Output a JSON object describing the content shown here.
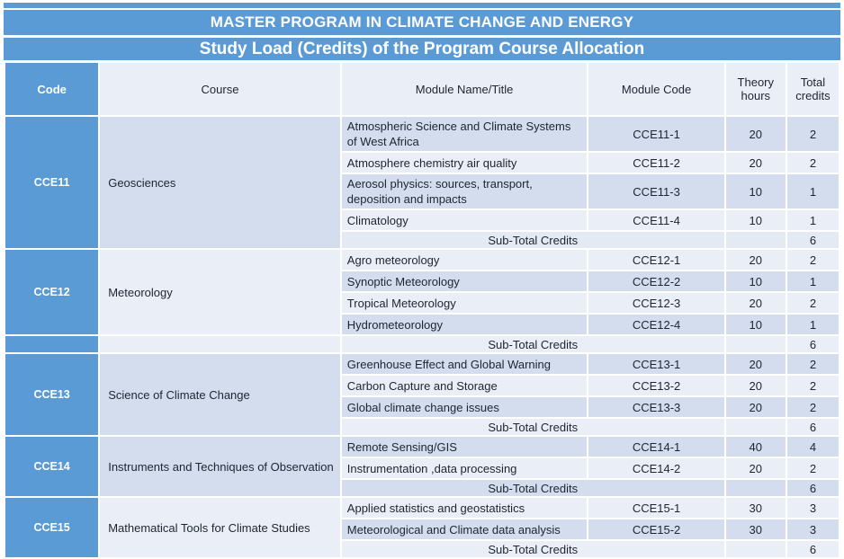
{
  "title": "MASTER PROGRAM IN CLIMATE CHANGE AND ENERGY",
  "subtitle": "Study Load (Credits) of the Program Course Allocation",
  "colors": {
    "accent_blue": "#5b9bd5",
    "row_dark": "#d3ddee",
    "row_light": "#eaeef7",
    "row_medium": "#e4eaf4",
    "grid_white": "#ffffff",
    "header_text": "#1e2530",
    "inverse_text": "#ffffff"
  },
  "table": {
    "headers": [
      "Code",
      "Course",
      "Module Name/Title",
      "Module Code",
      "Theory hours",
      "Total credits"
    ],
    "subtotal_label": "Sub-Total Credits",
    "sections": [
      {
        "code": "CCE11",
        "course": "Geosciences",
        "course_shade": "dark",
        "modules": [
          {
            "name": "Atmospheric Science and Climate Systems of West Africa",
            "code": "CCE11-1",
            "hours": "20",
            "credits": "2",
            "shade": "dark"
          },
          {
            "name": "Atmosphere chemistry air quality",
            "code": "CCE11-2",
            "hours": "20",
            "credits": "2",
            "shade": "light"
          },
          {
            "name": "Aerosol physics: sources, transport, deposition and impacts",
            "code": "CCE11-3",
            "hours": "10",
            "credits": "1",
            "shade": "dark"
          },
          {
            "name": "Climatology",
            "code": "CCE11-4",
            "hours": "10",
            "credits": "1",
            "shade": "light"
          }
        ],
        "subtotal": {
          "credits": "6",
          "shade": "medium",
          "standalone": false
        }
      },
      {
        "code": "CCE12",
        "course": "Meteorology",
        "course_shade": "light",
        "modules": [
          {
            "name": "Agro meteorology",
            "code": "CCE12-1",
            "hours": "20",
            "credits": "2",
            "shade": "light"
          },
          {
            "name": "Synoptic Meteorology",
            "code": "CCE12-2",
            "hours": "10",
            "credits": "1",
            "shade": "dark"
          },
          {
            "name": "Tropical Meteorology",
            "code": "CCE12-3",
            "hours": "20",
            "credits": "2",
            "shade": "light"
          },
          {
            "name": "Hydrometeorology",
            "code": "CCE12-4",
            "hours": "10",
            "credits": "1",
            "shade": "dark"
          }
        ],
        "subtotal": {
          "credits": "6",
          "shade": "light",
          "standalone": true
        }
      },
      {
        "code": "CCE13",
        "course": "Science of Climate Change",
        "course_shade": "dark",
        "modules": [
          {
            "name": "Greenhouse Effect and Global Warning",
            "code": "CCE13-1",
            "hours": "20",
            "credits": "2",
            "shade": "dark"
          },
          {
            "name": "Carbon Capture and Storage",
            "code": "CCE13-2",
            "hours": "20",
            "credits": "2",
            "shade": "light"
          },
          {
            "name": "Global climate change issues",
            "code": "CCE13-3",
            "hours": "20",
            "credits": "2",
            "shade": "dark"
          }
        ],
        "subtotal": {
          "credits": "6",
          "shade": "light",
          "standalone": false
        }
      },
      {
        "code": "CCE14",
        "course": "Instruments and Techniques of Observation",
        "course_shade": "dark",
        "modules": [
          {
            "name": "Remote Sensing/GIS",
            "code": "CCE14-1",
            "hours": "40",
            "credits": "4",
            "shade": "dark"
          },
          {
            "name": "Instrumentation ,data processing",
            "code": "CCE14-2",
            "hours": "20",
            "credits": "2",
            "shade": "light"
          }
        ],
        "subtotal": {
          "credits": "6",
          "shade": "dark",
          "standalone": false
        }
      },
      {
        "code": "CCE15",
        "course": "Mathematical Tools for Climate Studies",
        "course_shade": "light",
        "modules": [
          {
            "name": "Applied statistics and geostatistics",
            "code": "CCE15-1",
            "hours": "30",
            "credits": "3",
            "shade": "light"
          },
          {
            "name": "Meteorological and Climate data analysis",
            "code": "CCE15-2",
            "hours": "30",
            "credits": "3",
            "shade": "dark"
          }
        ],
        "subtotal": {
          "credits": "6",
          "shade": "light",
          "standalone": false
        }
      }
    ]
  }
}
